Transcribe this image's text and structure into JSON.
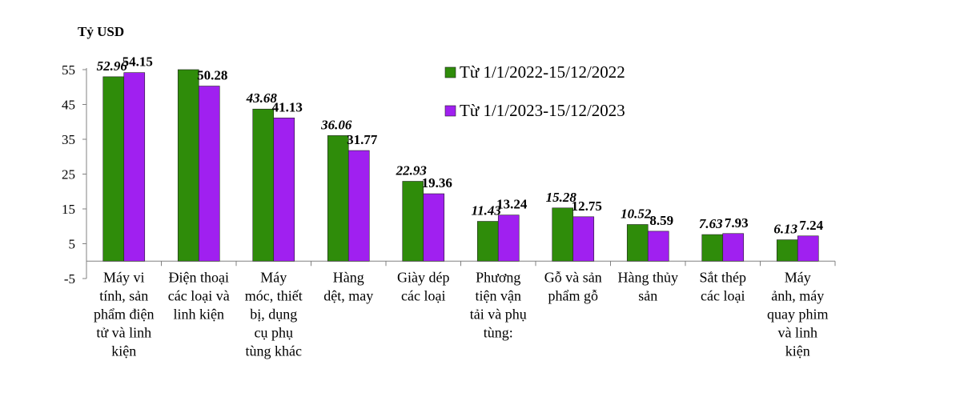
{
  "chart_data": {
    "type": "bar",
    "ylabel": "Tỷ USD",
    "ylim": [
      -5,
      55
    ],
    "yticks": [
      "55",
      "45",
      "35",
      "25",
      "15",
      "5",
      "-5"
    ],
    "ytick_values": [
      55,
      45,
      35,
      25,
      15,
      5,
      -5
    ],
    "grid": false,
    "legend_position": "top-right",
    "categories": [
      [
        "Máy vi",
        "tính, sản",
        "phẩm điện",
        "tử và linh",
        "kiện"
      ],
      [
        "Điện thoại",
        "các loại và",
        "linh kiện"
      ],
      [
        "Máy",
        "móc, thiết",
        "bị, dụng",
        "cụ phụ",
        "tùng khác"
      ],
      [
        "Hàng",
        "dệt, may"
      ],
      [
        "Giày dép",
        "các loại"
      ],
      [
        "Phương",
        "tiện vận",
        "tải và phụ",
        "tùng:"
      ],
      [
        "Gỗ và sản",
        "phẩm gỗ"
      ],
      [
        "Hàng thủy",
        "sản"
      ],
      [
        "Sắt thép",
        "các loại"
      ],
      [
        "Máy",
        "ảnh, máy",
        "quay phim",
        "và linh",
        "kiện"
      ]
    ],
    "series": [
      {
        "name": "Từ 1/1/2022-15/12/2022",
        "color": "#2f8c0a",
        "values": [
          52.96,
          55.0,
          43.68,
          36.06,
          22.93,
          11.43,
          15.28,
          10.52,
          7.63,
          6.13
        ],
        "labels": [
          "52.96",
          "",
          "43.68",
          "36.06",
          "22.93",
          "11.43",
          "15.28",
          "10.52",
          "7.63",
          "6.13"
        ]
      },
      {
        "name": "Từ 1/1/2023-15/12/2023",
        "color": "#a020f0",
        "values": [
          54.15,
          50.28,
          41.13,
          31.77,
          19.36,
          13.24,
          12.75,
          8.59,
          7.93,
          7.24
        ],
        "labels": [
          "54.15",
          "50.28",
          "41.13",
          "31.77",
          "19.36",
          "13.24",
          "12.75",
          "8.59",
          "7.93",
          "7.24"
        ]
      }
    ]
  }
}
